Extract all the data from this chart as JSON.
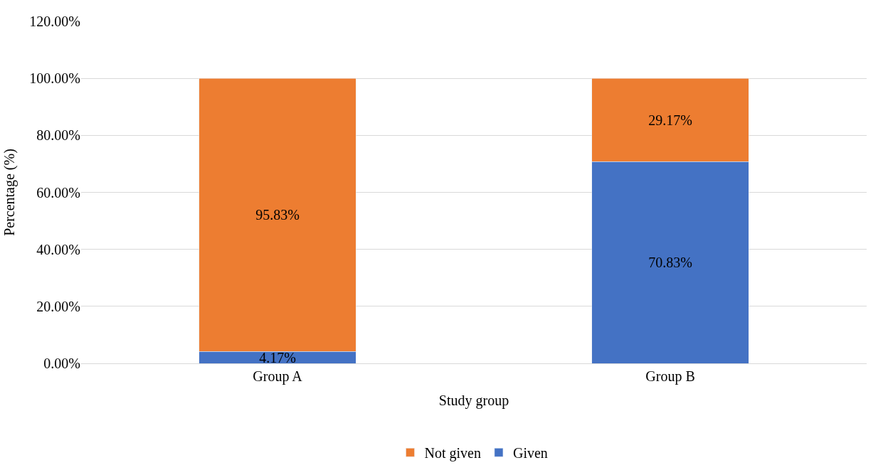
{
  "chart_data": {
    "type": "bar",
    "stacked": true,
    "xlabel": "Study group",
    "ylabel": "Percentage (%)",
    "categories": [
      "Group A",
      "Group B"
    ],
    "series": [
      {
        "name": "Given",
        "color": "#4472c4",
        "values": [
          4.17,
          70.83
        ],
        "value_labels": [
          "4.17%",
          "70.83%"
        ]
      },
      {
        "name": "Not given",
        "color": "#ed7d31",
        "values": [
          95.83,
          29.17
        ],
        "value_labels": [
          "95.83%",
          "29.17%"
        ]
      }
    ],
    "ylim": [
      0,
      120
    ],
    "yticks": [
      {
        "value": 0,
        "label": "0.00%"
      },
      {
        "value": 20,
        "label": "20.00%"
      },
      {
        "value": 40,
        "label": "40.00%"
      },
      {
        "value": 60,
        "label": "60.00%"
      },
      {
        "value": 80,
        "label": "80.00%"
      },
      {
        "value": 100,
        "label": "100.00%"
      },
      {
        "value": 120,
        "label": "120.00%"
      }
    ],
    "grid": "y",
    "legend": "bottom"
  }
}
